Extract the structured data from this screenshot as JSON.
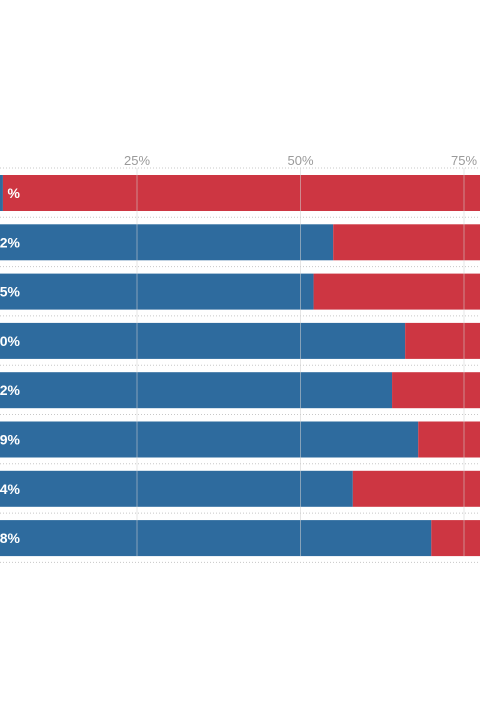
{
  "chart_data": {
    "type": "bar",
    "stacked": true,
    "orientation": "horizontal",
    "xlim": [
      0,
      100
    ],
    "grid": true,
    "ticks": [
      {
        "value": 25,
        "label": "25%"
      },
      {
        "value": 50,
        "label": "50%"
      },
      {
        "value": 75,
        "label": "75%"
      }
    ],
    "colors": {
      "blue": "#2e6b9e",
      "red": "#cd3642",
      "grid": "#d0d0d0",
      "separator": "#c8c8c8"
    },
    "series": [
      {
        "color": "blue",
        "values": [
          4.5,
          55,
          52,
          66,
          64,
          68,
          58,
          70
        ]
      },
      {
        "color": "red",
        "values": [
          95.5,
          45,
          48,
          34,
          36,
          32,
          42,
          30
        ]
      }
    ],
    "bar_labels": [
      "%",
      "2%",
      "5%",
      "0%",
      "2%",
      "9%",
      "4%",
      "8%"
    ]
  }
}
